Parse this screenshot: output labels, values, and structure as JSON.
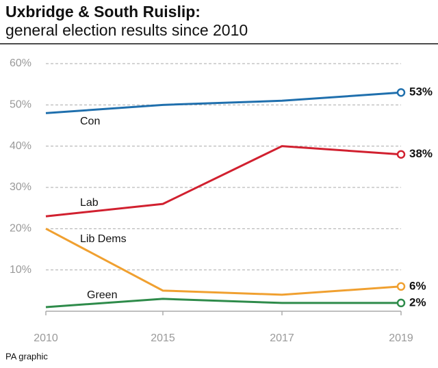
{
  "chart_data": {
    "type": "line",
    "title": "Uxbridge & South Ruislip:",
    "subtitle": "general election results since 2010",
    "source": "PA graphic",
    "categories": [
      "2010",
      "2015",
      "2017",
      "2019"
    ],
    "ylim": [
      0,
      60
    ],
    "yticks": [
      {
        "value": 10,
        "label": "10%"
      },
      {
        "value": 20,
        "label": "20%"
      },
      {
        "value": 30,
        "label": "30%"
      },
      {
        "value": 40,
        "label": "40%"
      },
      {
        "value": 50,
        "label": "50%"
      },
      {
        "value": 60,
        "label": "60%"
      }
    ],
    "grid": true,
    "series": [
      {
        "name": "Con",
        "color": "#1f6fad",
        "values": [
          48,
          50,
          51,
          53
        ],
        "value_labels": [
          null,
          null,
          null,
          "53%"
        ]
      },
      {
        "name": "Lab",
        "color": "#d1202f",
        "values": [
          23,
          26,
          40,
          38
        ],
        "value_labels": [
          null,
          null,
          null,
          "38%"
        ]
      },
      {
        "name": "Lib Dems",
        "color": "#f0a030",
        "values": [
          20,
          5,
          4,
          6
        ],
        "value_labels": [
          null,
          null,
          null,
          "6%"
        ]
      },
      {
        "name": "Green",
        "color": "#2e8b4a",
        "values": [
          1,
          3,
          2,
          2
        ],
        "value_labels": [
          null,
          null,
          null,
          "2%"
        ]
      }
    ]
  }
}
